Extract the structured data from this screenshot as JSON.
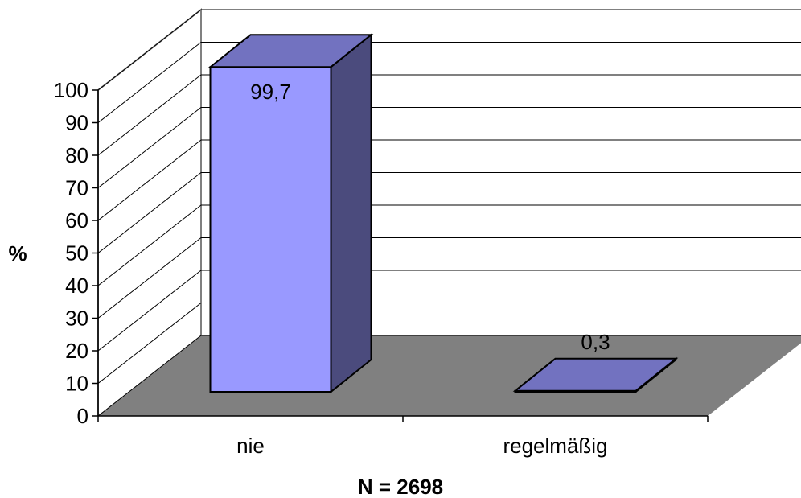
{
  "chart_data": {
    "type": "bar",
    "categories": [
      "nie",
      "regelmäßig"
    ],
    "values": [
      99.7,
      0.3
    ],
    "value_labels": [
      "99,7",
      "0,3"
    ],
    "title": "",
    "xlabel": "N = 2698",
    "ylabel": "%",
    "ylim": [
      0,
      100
    ],
    "yticks": [
      "0",
      "10",
      "20",
      "30",
      "40",
      "50",
      "60",
      "70",
      "80",
      "90",
      "100"
    ],
    "grid": true,
    "legend": "none",
    "colors": {
      "bar_front": "#9999ff",
      "bar_side": "#4b4b7d",
      "bar_top": "#7272c0",
      "floor": "#808080",
      "grid": "#000000",
      "wall": "#808080"
    }
  }
}
